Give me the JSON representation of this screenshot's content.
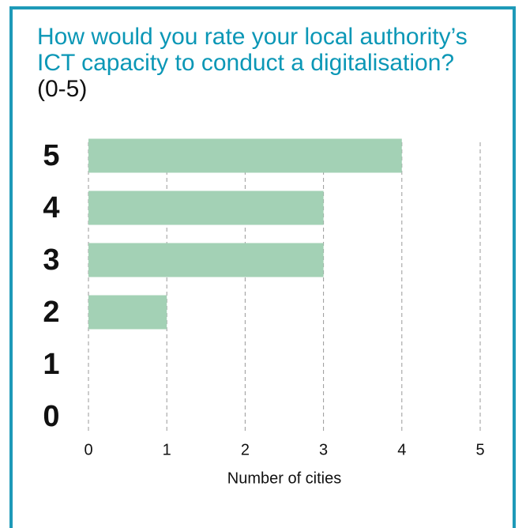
{
  "chart_data": {
    "type": "bar",
    "orientation": "horizontal",
    "title": "How would you rate your local authority’s ICT capacity to conduct a digitalisation?",
    "title_note": "(0-5)",
    "xlabel": "Number of cities",
    "categories": [
      "5",
      "4",
      "3",
      "2",
      "1",
      "0"
    ],
    "values": [
      4,
      3,
      3,
      1,
      0,
      0
    ],
    "color": "#a3d1b5",
    "xlim": [
      0,
      5
    ],
    "xticks": [
      0,
      1,
      2,
      3,
      4,
      5
    ],
    "grid": true
  }
}
